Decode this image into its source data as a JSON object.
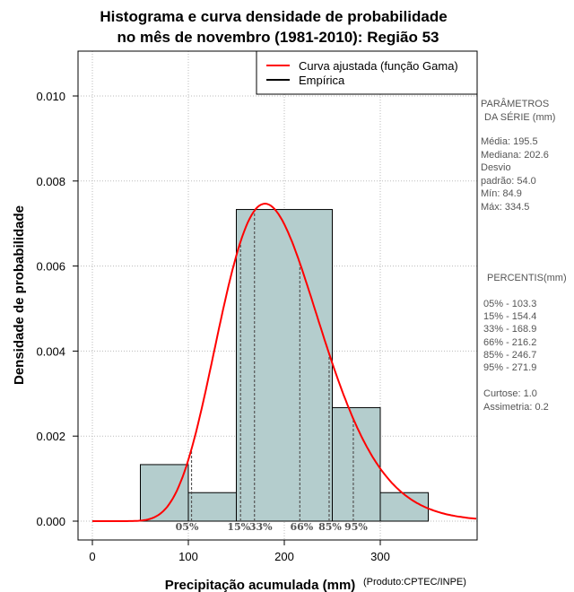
{
  "chart_data": {
    "type": "bar",
    "title_line1": "Histograma e curva densidade de probabilidade",
    "title_line2": "no mês de novembro (1981-2010): Região 53",
    "xlabel": "Precipitação acumulada (mm)",
    "ylabel": "Densidade de probabilidade",
    "credit": "(Produto:CPTEC/INPE)",
    "xlim": [
      -15,
      400
    ],
    "ylim": [
      0,
      0.011
    ],
    "x_ticks": [
      {
        "value": 0,
        "label": "0"
      },
      {
        "value": 100,
        "label": "100"
      },
      {
        "value": 200,
        "label": "200"
      },
      {
        "value": 300,
        "label": "300"
      }
    ],
    "y_ticks": [
      {
        "value": 0,
        "label": "0.000"
      },
      {
        "value": 0.002,
        "label": "0.002"
      },
      {
        "value": 0.004,
        "label": "0.004"
      },
      {
        "value": 0.006,
        "label": "0.006"
      },
      {
        "value": 0.008,
        "label": "0.008"
      },
      {
        "value": 0.01,
        "label": "0.010"
      }
    ],
    "grid": true,
    "bin_edges": [
      50,
      100,
      150,
      250,
      300,
      350
    ],
    "bins": [
      {
        "from": 50,
        "to": 100,
        "density": 0.00133
      },
      {
        "from": 100,
        "to": 150,
        "density": 0.00067
      },
      {
        "from": 150,
        "to": 250,
        "density": 0.00733
      },
      {
        "from": 250,
        "to": 300,
        "density": 0.00267
      },
      {
        "from": 300,
        "to": 350,
        "density": 0.00067
      }
    ],
    "gamma_curve": {
      "shape": 12.5,
      "scale": 15.64
    },
    "legend": {
      "position": "top-right",
      "entries": [
        {
          "label": "Curva ajustada (função Gama)",
          "color": "#ff0000"
        },
        {
          "label": "Empírica",
          "color": "#000000"
        }
      ]
    },
    "percentile_markers": [
      {
        "label": "05%",
        "value": 103.3
      },
      {
        "label": "15%",
        "value": 154.4
      },
      {
        "label": "33%",
        "value": 168.9
      },
      {
        "label": "66%",
        "value": 216.2
      },
      {
        "label": "85%",
        "value": 246.7
      },
      {
        "label": "95%",
        "value": 271.9
      }
    ]
  },
  "side_panel": {
    "params_title_1": "PARÂMETROS",
    "params_title_2": "DA SÉRIE (mm)",
    "params": [
      "Média:  195.5",
      "Mediana:  202.6",
      "Desvio",
      "padrão:  54.0",
      "Mín:  84.9",
      "Máx:  334.5"
    ],
    "percentis_title": "PERCENTIS(mm)",
    "percentis": [
      "05% -  103.3",
      "15% -  154.4",
      "33% -  168.9",
      "66% -  216.2",
      "85% -  246.7",
      "95% -  271.9"
    ],
    "stats": [
      "Curtose:  1.0",
      "Assimetria:  0.2"
    ]
  },
  "colors": {
    "bar_fill": "#b4cdcd",
    "curve": "#ff0000",
    "grid": "#bbbbbb"
  }
}
